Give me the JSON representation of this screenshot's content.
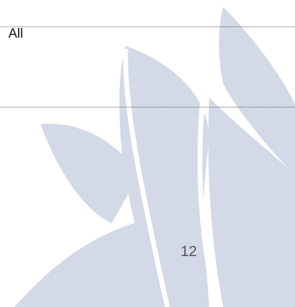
{
  "table": {
    "rows": [
      [
        "All"
      ]
    ]
  },
  "footer": {
    "page_number": "12"
  }
}
